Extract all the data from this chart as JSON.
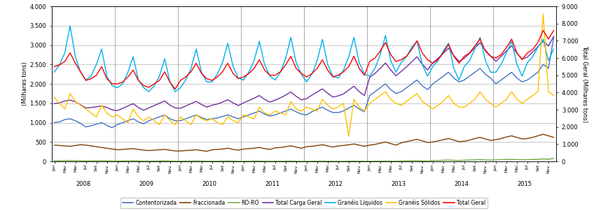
{
  "ylabel_left": "(Milhares tons)",
  "ylabel_right": "Total Geral (Milhares tons)",
  "ylim_left": [
    0,
    4000
  ],
  "ylim_right": [
    0,
    9000
  ],
  "yticks_left": [
    0,
    500,
    1000,
    1500,
    2000,
    2500,
    3000,
    3500,
    4000
  ],
  "yticks_right": [
    0,
    1000,
    2000,
    3000,
    4000,
    5000,
    6000,
    7000,
    8000,
    9000
  ],
  "background_color": "#ffffff",
  "grid_color": "#b0b0b0",
  "series": {
    "Contentorizada": {
      "color": "#4472C4",
      "values": [
        1000,
        1020,
        1080,
        1100,
        1050,
        980,
        890,
        920,
        960,
        1000,
        930,
        870,
        950,
        1000,
        1050,
        1100,
        1020,
        970,
        1050,
        1100,
        1150,
        1200,
        1100,
        1050,
        1050,
        1100,
        1150,
        1200,
        1130,
        1080,
        1100,
        1120,
        1160,
        1200,
        1150,
        1100,
        1150,
        1200,
        1250,
        1300,
        1220,
        1170,
        1200,
        1250,
        1300,
        1350,
        1280,
        1220,
        1200,
        1280,
        1350,
        1400,
        1320,
        1260,
        1260,
        1300,
        1380,
        1450,
        1350,
        1280,
        1700,
        1800,
        1900,
        2000,
        1850,
        1750,
        1800,
        1900,
        2000,
        2100,
        1950,
        1850,
        2000,
        2100,
        2200,
        2300,
        2150,
        2050,
        2100,
        2200,
        2300,
        2400,
        2250,
        2150,
        2000,
        2100,
        2200,
        2300,
        2150,
        2050,
        2100,
        2200,
        2300,
        2500,
        2400,
        3200
      ]
    },
    "Fraccionada": {
      "color": "#7F3F00",
      "values": [
        420,
        410,
        400,
        390,
        410,
        430,
        420,
        400,
        380,
        360,
        340,
        320,
        300,
        310,
        320,
        330,
        310,
        290,
        280,
        290,
        300,
        310,
        290,
        270,
        270,
        280,
        290,
        300,
        280,
        260,
        300,
        310,
        320,
        340,
        310,
        290,
        320,
        330,
        340,
        360,
        330,
        310,
        350,
        360,
        380,
        400,
        370,
        340,
        380,
        390,
        410,
        430,
        400,
        370,
        400,
        410,
        430,
        450,
        420,
        390,
        420,
        440,
        470,
        500,
        460,
        420,
        480,
        510,
        540,
        570,
        530,
        490,
        500,
        530,
        560,
        590,
        550,
        510,
        520,
        550,
        590,
        620,
        580,
        540,
        560,
        590,
        630,
        660,
        620,
        580,
        590,
        620,
        660,
        700,
        660,
        620
      ]
    },
    "RO-RO": {
      "color": "#70AD47",
      "values": [
        15,
        18,
        20,
        22,
        18,
        14,
        12,
        14,
        16,
        18,
        14,
        10,
        10,
        12,
        14,
        16,
        12,
        8,
        8,
        10,
        12,
        14,
        10,
        7,
        7,
        9,
        11,
        13,
        9,
        6,
        6,
        8,
        10,
        12,
        8,
        5,
        5,
        7,
        9,
        11,
        7,
        5,
        5,
        6,
        8,
        10,
        7,
        5,
        4,
        5,
        7,
        9,
        6,
        4,
        4,
        5,
        7,
        9,
        7,
        5,
        5,
        6,
        8,
        10,
        8,
        6,
        10,
        12,
        15,
        18,
        14,
        10,
        20,
        25,
        30,
        35,
        28,
        22,
        30,
        35,
        40,
        45,
        38,
        32,
        40,
        45,
        50,
        55,
        48,
        42,
        45,
        50,
        55,
        65,
        55,
        80
      ]
    },
    "Total Carga Geral": {
      "color": "#7030A0",
      "values": [
        1490,
        1510,
        1560,
        1580,
        1540,
        1460,
        1380,
        1390,
        1410,
        1430,
        1390,
        1330,
        1310,
        1370,
        1430,
        1490,
        1390,
        1320,
        1380,
        1440,
        1500,
        1560,
        1450,
        1380,
        1370,
        1430,
        1490,
        1550,
        1470,
        1400,
        1450,
        1480,
        1530,
        1590,
        1510,
        1440,
        1510,
        1570,
        1630,
        1700,
        1600,
        1530,
        1580,
        1640,
        1710,
        1790,
        1680,
        1590,
        1620,
        1710,
        1790,
        1870,
        1760,
        1660,
        1690,
        1740,
        1840,
        1940,
        1800,
        1700,
        2170,
        2270,
        2400,
        2540,
        2360,
        2210,
        2320,
        2440,
        2570,
        2700,
        2510,
        2360,
        2540,
        2660,
        2790,
        2920,
        2730,
        2580,
        2660,
        2790,
        2930,
        3060,
        2870,
        2720,
        2580,
        2710,
        2850,
        2980,
        2790,
        2640,
        2690,
        2820,
        2960,
        3100,
        2980,
        3220
      ]
    },
    "Granéis Líquidos": {
      "color": "#00B0F0",
      "values": [
        2300,
        2500,
        2800,
        3500,
        2700,
        2300,
        2100,
        2200,
        2500,
        2900,
        2200,
        1950,
        1900,
        2000,
        2300,
        2700,
        2100,
        1900,
        1800,
        1950,
        2200,
        2650,
        2050,
        1800,
        1900,
        2100,
        2400,
        2900,
        2300,
        2050,
        2050,
        2250,
        2550,
        3050,
        2450,
        2150,
        2100,
        2300,
        2600,
        3100,
        2500,
        2200,
        2100,
        2300,
        2650,
        3200,
        2550,
        2250,
        2050,
        2250,
        2600,
        3150,
        2500,
        2200,
        2150,
        2350,
        2700,
        3200,
        2550,
        2250,
        2200,
        2400,
        2750,
        3250,
        2600,
        2300,
        2550,
        2700,
        2950,
        3100,
        2500,
        2200,
        2450,
        2600,
        2850,
        3050,
        2400,
        2100,
        2450,
        2600,
        2900,
        3200,
        2600,
        2300,
        2300,
        2500,
        2800,
        3100,
        2500,
        2200,
        2550,
        2700,
        2950,
        3150,
        2600,
        2900
      ]
    },
    "Granéis Sólidos": {
      "color": "#FFC000",
      "values": [
        1650,
        1500,
        1350,
        1750,
        1550,
        1450,
        1350,
        1250,
        1150,
        1450,
        1250,
        1150,
        1200,
        1100,
        1000,
        1350,
        1150,
        1050,
        1150,
        1050,
        950,
        1200,
        1050,
        950,
        1150,
        1050,
        950,
        1200,
        1100,
        1050,
        1100,
        1000,
        950,
        1150,
        1050,
        1000,
        1200,
        1150,
        1100,
        1400,
        1250,
        1200,
        1300,
        1250,
        1200,
        1550,
        1350,
        1300,
        1400,
        1350,
        1300,
        1600,
        1450,
        1350,
        1400,
        1500,
        650,
        1600,
        1400,
        1300,
        1500,
        1600,
        1700,
        1800,
        1600,
        1500,
        1450,
        1550,
        1650,
        1750,
        1550,
        1450,
        1350,
        1450,
        1550,
        1700,
        1500,
        1400,
        1400,
        1500,
        1600,
        1800,
        1600,
        1500,
        1400,
        1500,
        1600,
        1800,
        1600,
        1500,
        1600,
        1700,
        1800,
        3800,
        1800,
        1700
      ]
    },
    "Total Geral": {
      "color": "#FF0000",
      "axis": "right",
      "values": [
        5500,
        5600,
        5800,
        6300,
        5700,
        5200,
        4700,
        4800,
        5000,
        5500,
        4800,
        4500,
        4500,
        4600,
        4900,
        5300,
        4700,
        4400,
        4300,
        4500,
        4700,
        5200,
        4600,
        4200,
        4700,
        4900,
        5200,
        5700,
        5100,
        4800,
        4700,
        4900,
        5200,
        5700,
        5100,
        4800,
        4900,
        5100,
        5400,
        5900,
        5300,
        5000,
        5000,
        5200,
        5600,
        6100,
        5400,
        5100,
        4900,
        5100,
        5400,
        5900,
        5300,
        4900,
        5000,
        5200,
        5500,
        6100,
        5400,
        5000,
        5800,
        6000,
        6400,
        6900,
        6200,
        5800,
        5900,
        6100,
        6500,
        7000,
        6300,
        5900,
        5700,
        5900,
        6300,
        6800,
        6100,
        5700,
        6100,
        6300,
        6700,
        7100,
        6400,
        6100,
        6000,
        6200,
        6600,
        7100,
        6300,
        5900,
        6300,
        6500,
        6900,
        7600,
        7100,
        7600
      ]
    }
  },
  "legend": [
    {
      "label": "Contentorizada",
      "color": "#4472C4"
    },
    {
      "label": "Fraccionada",
      "color": "#7F3F00"
    },
    {
      "label": "RO-RO",
      "color": "#70AD47"
    },
    {
      "label": "Total Carga Geral",
      "color": "#7030A0"
    },
    {
      "label": "Granéis Líquidos",
      "color": "#00B0F0"
    },
    {
      "label": "Granéis Sólidos",
      "color": "#FFC000"
    },
    {
      "label": "Total Geral",
      "color": "#FF0000"
    }
  ]
}
